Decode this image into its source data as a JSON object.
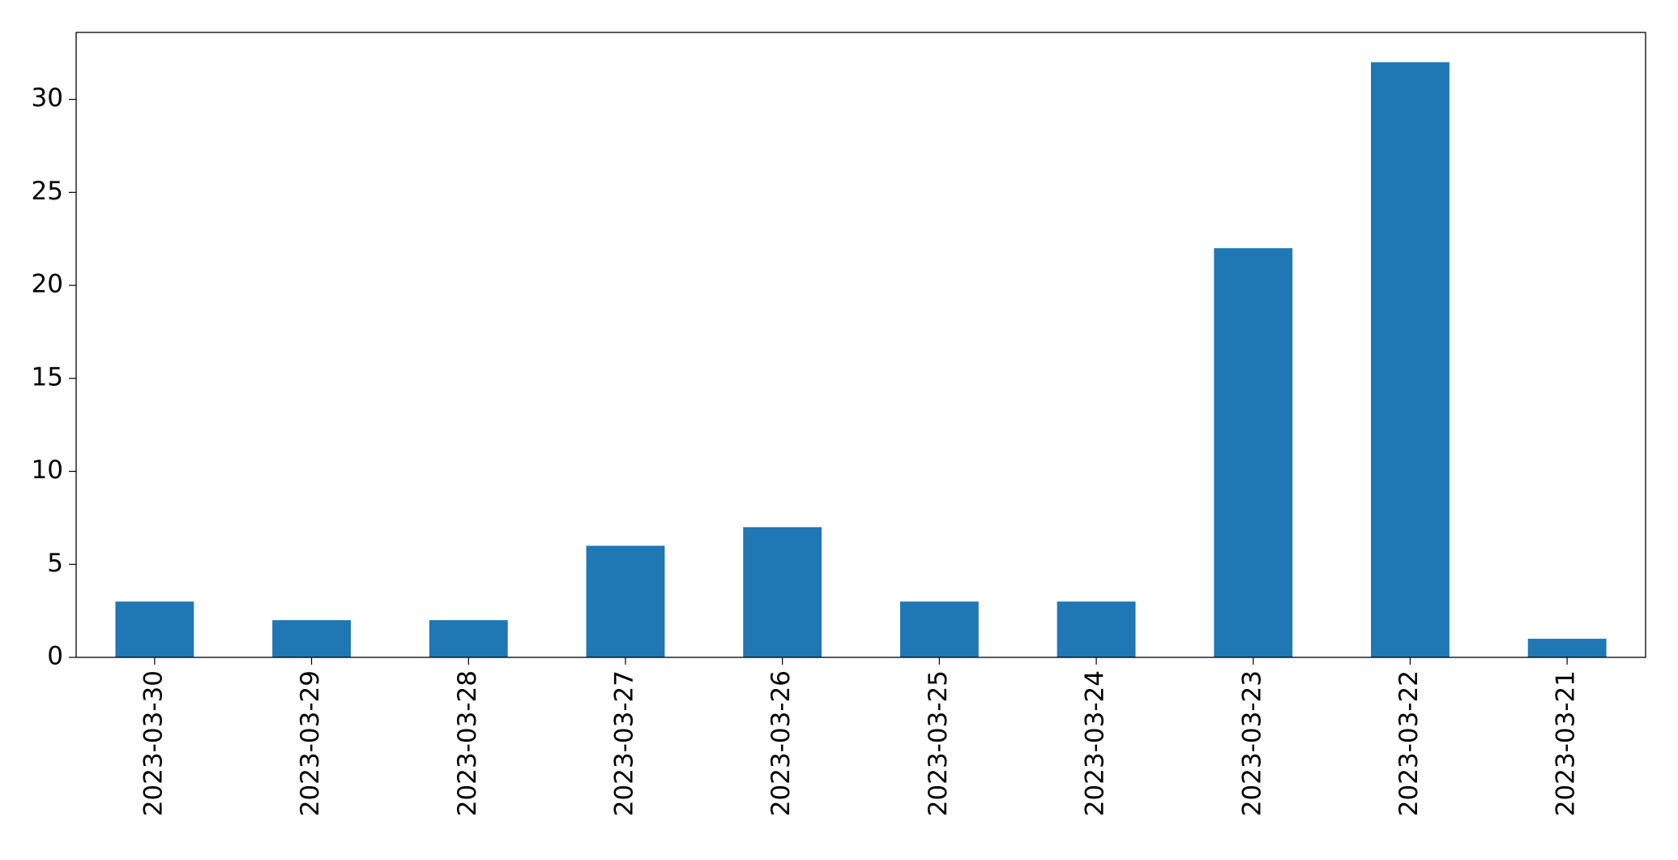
{
  "chart_data": {
    "type": "bar",
    "categories": [
      "2023-03-30",
      "2023-03-29",
      "2023-03-28",
      "2023-03-27",
      "2023-03-26",
      "2023-03-25",
      "2023-03-24",
      "2023-03-23",
      "2023-03-22",
      "2023-03-21"
    ],
    "values": [
      3,
      2,
      2,
      6,
      7,
      3,
      3,
      22,
      32,
      1
    ],
    "color": "#1f77b4",
    "ylim": [
      0,
      33.6
    ],
    "yticks": [
      0,
      5,
      10,
      15,
      20,
      25,
      30
    ],
    "grid": false
  }
}
